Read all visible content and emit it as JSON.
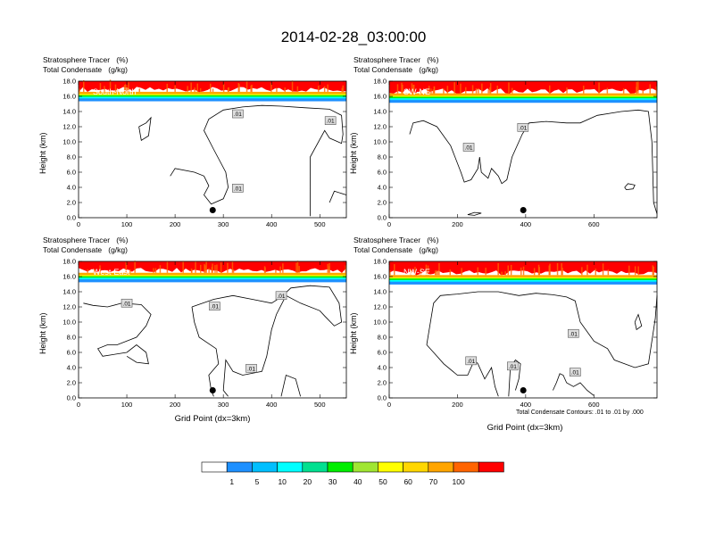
{
  "main_title": "2014-02-28_03:00:00",
  "panel_header_line1": "Stratosphere Tracer   (%)",
  "panel_header_line2": "Total Condensate   (g/kg)",
  "y_axis_label": "Height (km)",
  "x_axis_label": "Grid Point (dx=3km)",
  "contour_note": "Total Condensate Contours: .01 to .01 by .000",
  "contour_label": ".01",
  "colors": {
    "tracer_levels": [
      "#ffffff",
      "#1e90ff",
      "#00bfff",
      "#00ffff",
      "#00e090",
      "#00ee00",
      "#a0e632",
      "#ffff00",
      "#ffd700",
      "#ffa500",
      "#ff6400",
      "#ff0000"
    ]
  },
  "colorbar": {
    "labels": [
      "1",
      "5",
      "10",
      "20",
      "30",
      "40",
      "50",
      "60",
      "70",
      "100"
    ],
    "colors": [
      "#ffffff",
      "#1e90ff",
      "#00bfff",
      "#00ffff",
      "#00e090",
      "#00ee00",
      "#a0e632",
      "#ffff00",
      "#ffd700",
      "#ffa500",
      "#ff6400",
      "#ff0000"
    ]
  },
  "chart_data": [
    {
      "type": "heatmap",
      "panel_label": "South-North",
      "xlim": [
        0,
        555
      ],
      "ylim": [
        0,
        18
      ],
      "x_ticks": [
        0,
        100,
        200,
        300,
        400,
        500
      ],
      "y_ticks": [
        "0.0",
        "2.0",
        "4.0",
        "6.0",
        "8.0",
        "10.0",
        "12.0",
        "14.0",
        "16.0",
        "18.0"
      ],
      "tracer_band_bottom_km": 15.4,
      "marker": {
        "x": 278,
        "y": 1.0
      },
      "contour_labels": [
        {
          "x": 330,
          "y": 13.7
        },
        {
          "x": 522,
          "y": 12.8
        },
        {
          "x": 330,
          "y": 3.9
        }
      ]
    },
    {
      "type": "heatmap",
      "panel_label": "SW-NE",
      "xlim": [
        0,
        785
      ],
      "ylim": [
        0,
        18
      ],
      "x_ticks": [
        0,
        200,
        400,
        600
      ],
      "y_ticks": [
        "0.0",
        "2.0",
        "4.0",
        "6.0",
        "8.0",
        "10.0",
        "12.0",
        "14.0",
        "16.0",
        "18.0"
      ],
      "tracer_band_bottom_km": 15.2,
      "marker": {
        "x": 393,
        "y": 1.0
      },
      "contour_labels": [
        {
          "x": 392,
          "y": 11.9
        },
        {
          "x": 233,
          "y": 9.3
        }
      ]
    },
    {
      "type": "heatmap",
      "panel_label": "West-East",
      "xlim": [
        0,
        555
      ],
      "ylim": [
        0,
        18
      ],
      "x_ticks": [
        0,
        100,
        200,
        300,
        400,
        500
      ],
      "y_ticks": [
        "0.0",
        "2.0",
        "4.0",
        "6.0",
        "8.0",
        "10.0",
        "12.0",
        "14.0",
        "16.0",
        "18.0"
      ],
      "tracer_band_bottom_km": 15.3,
      "marker": {
        "x": 278,
        "y": 1.0
      },
      "contour_labels": [
        {
          "x": 100,
          "y": 12.5
        },
        {
          "x": 282,
          "y": 12.1
        },
        {
          "x": 420,
          "y": 13.5
        },
        {
          "x": 358,
          "y": 3.9
        }
      ]
    },
    {
      "type": "heatmap",
      "panel_label": "NW-SE",
      "xlim": [
        0,
        785
      ],
      "ylim": [
        0,
        18
      ],
      "x_ticks": [
        0,
        200,
        400,
        600
      ],
      "y_ticks": [
        "0.0",
        "2.0",
        "4.0",
        "6.0",
        "8.0",
        "10.0",
        "12.0",
        "14.0",
        "16.0",
        "18.0"
      ],
      "tracer_band_bottom_km": 15.0,
      "marker": {
        "x": 393,
        "y": 1.0
      },
      "contour_labels": [
        {
          "x": 240,
          "y": 4.9
        },
        {
          "x": 362,
          "y": 4.2
        },
        {
          "x": 545,
          "y": 3.4
        },
        {
          "x": 540,
          "y": 8.5
        }
      ]
    }
  ]
}
